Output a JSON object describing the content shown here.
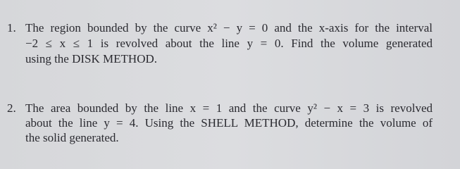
{
  "problems": [
    {
      "number": "1.",
      "lines": [
        "The region bounded by the curve x² − y = 0 and the x-axis for the interval",
        "−2 ≤ x ≤ 1 is revolved about the line y = 0. Find the volume generated",
        "using the DISK METHOD."
      ]
    },
    {
      "number": "2.",
      "lines": [
        "The area bounded by the line x = 1 and the curve y² − x = 3 is revolved",
        "about the line y = 4. Using the SHELL METHOD, determine the volume of",
        "the solid generated."
      ]
    }
  ]
}
